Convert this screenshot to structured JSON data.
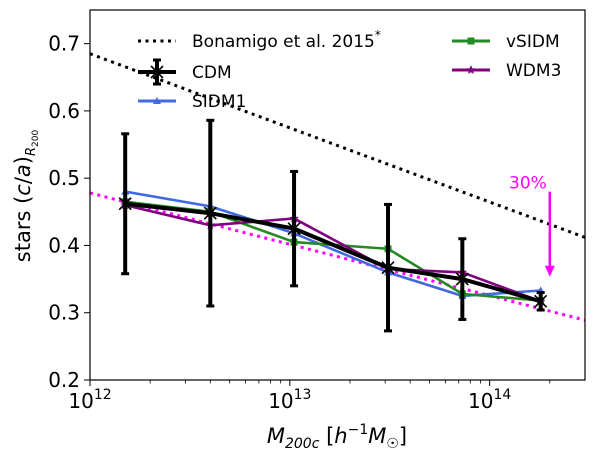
{
  "chart_data": {
    "type": "line",
    "xlabel": "M_200c [h^-1 M_sun]",
    "ylabel": "stars (c/a)_R200",
    "xscale": "log",
    "xlim": [
      1000000000000.0,
      300000000000000.0
    ],
    "ylim": [
      0.2,
      0.75
    ],
    "x_ticks": [
      {
        "value": 1000000000000.0,
        "base": "10",
        "exp": "12"
      },
      {
        "value": 10000000000000.0,
        "base": "10",
        "exp": "13"
      },
      {
        "value": 100000000000000.0,
        "base": "10",
        "exp": "14"
      }
    ],
    "y_ticks": [
      {
        "value": 0.2,
        "label": "0.2"
      },
      {
        "value": 0.3,
        "label": "0.3"
      },
      {
        "value": 0.4,
        "label": "0.4"
      },
      {
        "value": 0.5,
        "label": "0.5"
      },
      {
        "value": 0.6,
        "label": "0.6"
      },
      {
        "value": 0.7,
        "label": "0.7"
      }
    ],
    "legend_position": "top",
    "series": [
      {
        "name": "CDM",
        "color": "#000000",
        "marker": "x",
        "x": [
          1500000000000.0,
          4000000000000.0,
          10500000000000.0,
          31000000000000.0,
          73000000000000.0,
          180000000000000.0
        ],
        "y": [
          0.462,
          0.448,
          0.425,
          0.367,
          0.35,
          0.317
        ],
        "err": [
          0.104,
          0.138,
          0.085,
          0.094,
          0.06,
          0.013
        ]
      },
      {
        "name": "SIDM1",
        "color": "#4169e1",
        "marker": "triangle",
        "x": [
          1500000000000.0,
          4000000000000.0,
          10500000000000.0,
          31000000000000.0,
          73000000000000.0,
          180000000000000.0
        ],
        "y": [
          0.48,
          0.458,
          0.418,
          0.36,
          0.325,
          0.333
        ]
      },
      {
        "name": "vSIDM",
        "color": "#228b22",
        "marker": "square",
        "x": [
          1500000000000.0,
          4000000000000.0,
          10500000000000.0,
          31000000000000.0,
          73000000000000.0,
          180000000000000.0
        ],
        "y": [
          0.465,
          0.45,
          0.405,
          0.395,
          0.328,
          0.318
        ]
      },
      {
        "name": "WDM3",
        "color": "#800080",
        "marker": "star",
        "x": [
          1500000000000.0,
          4000000000000.0,
          10500000000000.0,
          31000000000000.0,
          73000000000000.0,
          180000000000000.0
        ],
        "y": [
          0.46,
          0.43,
          0.44,
          0.365,
          0.36,
          0.317
        ]
      }
    ],
    "reference_lines": [
      {
        "name": "Bonamigo et al. 2015",
        "marker_symbol": "*",
        "color": "#000000",
        "style": "dotted",
        "x": [
          1000000000000.0,
          300000000000000.0
        ],
        "y": [
          0.685,
          0.412
        ]
      },
      {
        "name": "",
        "color": "#ff00ff",
        "style": "dotted",
        "x": [
          1000000000000.0,
          300000000000000.0
        ],
        "y": [
          0.478,
          0.289
        ]
      }
    ],
    "annotation": {
      "text": "30%",
      "color": "#ff00ff",
      "arrow_x": 200000000000000.0,
      "arrow_from_y": 0.48,
      "arrow_to_y": 0.355
    }
  }
}
